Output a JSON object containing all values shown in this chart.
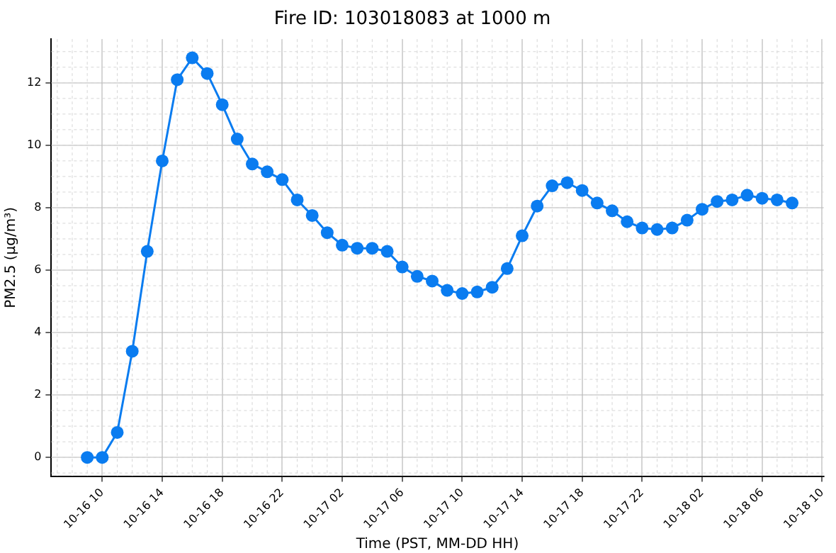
{
  "chart_data": {
    "type": "line",
    "title": "Fire ID: 103018083 at 1000 m",
    "xlabel": "Time (PST, MM-DD HH)",
    "ylabel": "PM2.5 (μg/m³)",
    "x": [
      "--10-16T09:00",
      "--10-16T10:00",
      "--10-16T11:00",
      "--10-16T12:00",
      "--10-16T13:00",
      "--10-16T14:00",
      "--10-16T15:00",
      "--10-16T16:00",
      "--10-16T17:00",
      "--10-16T18:00",
      "--10-16T19:00",
      "--10-16T20:00",
      "--10-16T21:00",
      "--10-16T22:00",
      "--10-16T23:00",
      "--10-17T00:00",
      "--10-17T01:00",
      "--10-17T02:00",
      "--10-17T03:00",
      "--10-17T04:00",
      "--10-17T05:00",
      "--10-17T06:00",
      "--10-17T07:00",
      "--10-17T08:00",
      "--10-17T09:00",
      "--10-17T10:00",
      "--10-17T11:00",
      "--10-17T12:00",
      "--10-17T13:00",
      "--10-17T14:00",
      "--10-17T15:00",
      "--10-17T16:00",
      "--10-17T17:00",
      "--10-17T18:00",
      "--10-17T19:00",
      "--10-17T20:00",
      "--10-17T21:00",
      "--10-17T22:00",
      "--10-17T23:00",
      "--10-18T00:00",
      "--10-18T01:00",
      "--10-18T02:00",
      "--10-18T03:00",
      "--10-18T04:00",
      "--10-18T05:00",
      "--10-18T06:00",
      "--10-18T07:00",
      "--10-18T08:00"
    ],
    "series": [
      {
        "color": "#0a7cf0",
        "values": [
          0,
          0,
          0.8,
          3.4,
          6.6,
          9.5,
          12.1,
          12.8,
          12.3,
          11.3,
          10.2,
          9.4,
          9.15,
          8.9,
          8.25,
          7.75,
          7.2,
          6.8,
          6.7,
          6.7,
          6.6,
          6.1,
          5.8,
          5.65,
          5.35,
          5.25,
          5.3,
          5.45,
          6.05,
          7.1,
          8.05,
          8.7,
          8.8,
          8.55,
          8.15,
          7.9,
          7.55,
          7.35,
          7.3,
          7.35,
          7.6,
          7.95,
          8.2,
          8.25,
          8.4,
          8.3,
          8.25,
          8.15
        ]
      }
    ],
    "xlim": [
      "--10-16T06:36",
      "--10-18T10:06"
    ],
    "ylim": [
      -0.6,
      13.4
    ],
    "xticks": [
      {
        "value": "--10-16T10:00",
        "label": "10-16 10"
      },
      {
        "value": "--10-16T14:00",
        "label": "10-16 14"
      },
      {
        "value": "--10-16T18:00",
        "label": "10-16 18"
      },
      {
        "value": "--10-16T22:00",
        "label": "10-16 22"
      },
      {
        "value": "--10-17T02:00",
        "label": "10-17 02"
      },
      {
        "value": "--10-17T06:00",
        "label": "10-17 06"
      },
      {
        "value": "--10-17T10:00",
        "label": "10-17 10"
      },
      {
        "value": "--10-17T14:00",
        "label": "10-17 14"
      },
      {
        "value": "--10-17T18:00",
        "label": "10-17 18"
      },
      {
        "value": "--10-17T22:00",
        "label": "10-17 22"
      },
      {
        "value": "--10-18T02:00",
        "label": "10-18 02"
      },
      {
        "value": "--10-18T06:00",
        "label": "10-18 06"
      },
      {
        "value": "--10-18T10:00",
        "label": "10-18 10"
      }
    ],
    "yticks": [
      0,
      2,
      4,
      6,
      8,
      10,
      12
    ],
    "grid": true,
    "marker": "circle",
    "line_style": "solid",
    "legend": false
  }
}
